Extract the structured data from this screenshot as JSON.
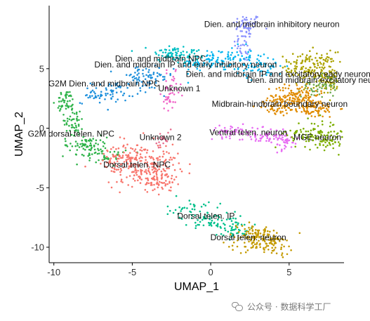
{
  "chart_data": {
    "type": "scatter",
    "xlabel": "UMAP_1",
    "ylabel": "UMAP_2",
    "xlim": [
      -10.3,
      8.5
    ],
    "ylim": [
      -11.3,
      10.3
    ],
    "xticks": [
      -10,
      -5,
      0,
      5
    ],
    "yticks": [
      -10,
      -5,
      0,
      5
    ],
    "grid": false,
    "legend": "none",
    "clusters": [
      {
        "label": "Dien. and midbrain inhibitory neuron",
        "color": "#8b93ff",
        "label_pos": [
          3.9,
          8.5
        ],
        "blobs": [
          {
            "cx": 2.3,
            "cy": 8.7,
            "sx": 0.45,
            "sy": 0.45,
            "n": 45
          },
          {
            "cx": 2.1,
            "cy": 7.3,
            "sx": 0.3,
            "sy": 0.9,
            "n": 40
          }
        ]
      },
      {
        "label": "Dien. and midbrain NPC",
        "color": "#00bfc4",
        "label_pos": [
          -3.2,
          5.6
        ],
        "blobs": [
          {
            "cx": -2.6,
            "cy": 6.3,
            "sx": 0.6,
            "sy": 0.4,
            "n": 50
          },
          {
            "cx": -1.4,
            "cy": 6.0,
            "sx": 0.6,
            "sy": 0.4,
            "n": 35
          }
        ]
      },
      {
        "label": "Dien. and midbrain IP and early inhibitory neuron",
        "color": "#00b4ef",
        "label_pos": [
          -1.6,
          5.1
        ],
        "blobs": [
          {
            "cx": -0.2,
            "cy": 5.5,
            "sx": 0.8,
            "sy": 0.4,
            "n": 60
          },
          {
            "cx": 1.3,
            "cy": 5.9,
            "sx": 0.7,
            "sy": 0.5,
            "n": 55
          },
          {
            "cx": 3.2,
            "cy": 5.2,
            "sx": 0.8,
            "sy": 0.5,
            "n": 60
          }
        ]
      },
      {
        "label": "Dien. and midbrain IP and excitatory early neuron",
        "color": "#aca300",
        "label_pos": [
          4.3,
          4.3
        ],
        "blobs": [
          {
            "cx": 6.6,
            "cy": 5.0,
            "sx": 0.7,
            "sy": 0.7,
            "n": 120
          },
          {
            "cx": 7.6,
            "cy": 4.0,
            "sx": 0.5,
            "sy": 0.6,
            "n": 60
          },
          {
            "cx": 5.5,
            "cy": 5.2,
            "sx": 0.5,
            "sy": 0.5,
            "n": 40
          }
        ]
      },
      {
        "label": "Dien. and midbrain excitatory neuron",
        "color": "#6aa84f",
        "label_pos": [
          6.7,
          3.8
        ],
        "blobs": [
          {
            "cx": 7.0,
            "cy": 3.6,
            "sx": 0.6,
            "sy": 0.5,
            "n": 50
          }
        ]
      },
      {
        "label": "G2M Dien. and midbrain NPC",
        "color": "#1e90dc",
        "label_pos": [
          -6.8,
          3.5
        ],
        "blobs": [
          {
            "cx": -6.2,
            "cy": 3.1,
            "sx": 0.7,
            "sy": 0.4,
            "n": 55
          },
          {
            "cx": -4.2,
            "cy": 4.2,
            "sx": 0.9,
            "sy": 0.5,
            "n": 70
          },
          {
            "cx": -7.5,
            "cy": 2.7,
            "sx": 0.4,
            "sy": 0.3,
            "n": 20
          }
        ]
      },
      {
        "label": "Unknown 1",
        "color": "#f066c8",
        "label_pos": [
          -2.0,
          3.1
        ],
        "blobs": [
          {
            "cx": -2.5,
            "cy": 3.2,
            "sx": 0.3,
            "sy": 0.7,
            "n": 35
          },
          {
            "cx": -2.7,
            "cy": 2.2,
            "sx": 0.2,
            "sy": 0.3,
            "n": 12
          }
        ]
      },
      {
        "label": "Midbrain-hindbrain boundary neuron",
        "color": "#e08b00",
        "label_pos": [
          4.4,
          1.8
        ],
        "blobs": [
          {
            "cx": 5.5,
            "cy": 2.8,
            "sx": 0.7,
            "sy": 0.5,
            "n": 110
          },
          {
            "cx": 6.3,
            "cy": 1.7,
            "sx": 0.9,
            "sy": 0.4,
            "n": 110
          },
          {
            "cx": 4.2,
            "cy": 1.9,
            "sx": 0.6,
            "sy": 0.4,
            "n": 50
          }
        ]
      },
      {
        "label": "G2M dorsal telen. NPC",
        "color": "#2fb34a",
        "label_pos": [
          -8.9,
          -0.7
        ],
        "blobs": [
          {
            "cx": -9.2,
            "cy": 2.2,
            "sx": 0.3,
            "sy": 0.5,
            "n": 50
          },
          {
            "cx": -8.7,
            "cy": 0.6,
            "sx": 0.3,
            "sy": 0.6,
            "n": 45
          },
          {
            "cx": -8.0,
            "cy": -1.4,
            "sx": 0.7,
            "sy": 0.4,
            "n": 70
          },
          {
            "cx": -6.6,
            "cy": -2.2,
            "sx": 0.6,
            "sy": 0.4,
            "n": 45
          }
        ]
      },
      {
        "label": "Ventral telen. neuron",
        "color": "#e76bf3",
        "label_pos": [
          2.4,
          -0.6
        ],
        "blobs": [
          {
            "cx": 1.3,
            "cy": -0.3,
            "sx": 0.7,
            "sy": 0.25,
            "n": 45
          },
          {
            "cx": 3.2,
            "cy": -0.6,
            "sx": 0.6,
            "sy": 0.3,
            "n": 40
          },
          {
            "cx": 4.5,
            "cy": -1.1,
            "sx": 0.6,
            "sy": 0.4,
            "n": 50
          }
        ]
      },
      {
        "label": "MGE neuron",
        "color": "#7cae00",
        "label_pos": [
          6.8,
          -1.0
        ],
        "blobs": [
          {
            "cx": 6.5,
            "cy": -0.5,
            "sx": 0.8,
            "sy": 0.6,
            "n": 90
          },
          {
            "cx": 7.6,
            "cy": -0.9,
            "sx": 0.4,
            "sy": 0.5,
            "n": 40
          }
        ]
      },
      {
        "label": "Unknown 2",
        "color": "#e56f8f",
        "label_pos": [
          -3.2,
          -1.0
        ],
        "blobs": [
          {
            "cx": -3.0,
            "cy": -1.1,
            "sx": 0.3,
            "sy": 0.4,
            "n": 18
          }
        ]
      },
      {
        "label": "Dorsal telen. NPC",
        "color": "#f8766d",
        "label_pos": [
          -4.7,
          -3.3
        ],
        "blobs": [
          {
            "cx": -4.4,
            "cy": -3.0,
            "sx": 1.2,
            "sy": 0.9,
            "n": 230
          },
          {
            "cx": -3.4,
            "cy": -4.4,
            "sx": 0.6,
            "sy": 0.5,
            "n": 60
          },
          {
            "cx": -5.6,
            "cy": -2.6,
            "sx": 0.5,
            "sy": 0.4,
            "n": 40
          }
        ]
      },
      {
        "label": "Dorsal telen. IP",
        "color": "#00c08b",
        "label_pos": [
          -0.3,
          -7.6
        ],
        "blobs": [
          {
            "cx": -1.4,
            "cy": -6.8,
            "sx": 0.7,
            "sy": 0.4,
            "n": 35
          },
          {
            "cx": 0.3,
            "cy": -7.8,
            "sx": 0.8,
            "sy": 0.4,
            "n": 60
          },
          {
            "cx": 1.6,
            "cy": -8.5,
            "sx": 0.5,
            "sy": 0.35,
            "n": 35
          }
        ]
      },
      {
        "label": "Dorsal telen. neuron",
        "color": "#c49a00",
        "label_pos": [
          2.4,
          -9.4
        ],
        "blobs": [
          {
            "cx": 2.9,
            "cy": -9.1,
            "sx": 1.0,
            "sy": 0.5,
            "n": 110
          },
          {
            "cx": 3.8,
            "cy": -9.8,
            "sx": 0.7,
            "sy": 0.4,
            "n": 60
          }
        ]
      }
    ]
  },
  "watermark": {
    "text": "公众号 · 数据科学工厂",
    "icon": "wechat-icon"
  }
}
